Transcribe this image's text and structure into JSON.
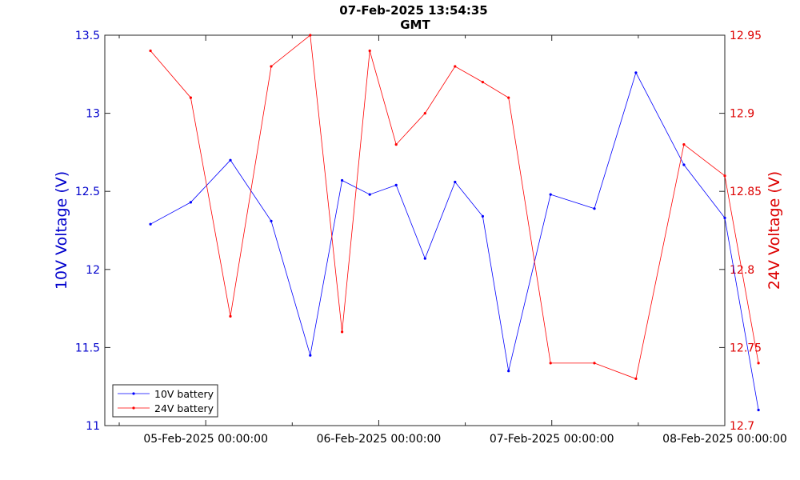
{
  "chart_data": {
    "type": "line",
    "title": "07-Feb-2025 13:54:35",
    "subtitle": "GMT",
    "ylabel": "10V Voltage (V)",
    "y2label": "24V Voltage (V)",
    "xlim": [
      "2025-02-04T10:00:00",
      "2025-02-08T00:00:00"
    ],
    "ylim": [
      11,
      13.5
    ],
    "y2lim": [
      12.7,
      12.95
    ],
    "x_ticks": [
      "05-Feb-2025 00:00:00",
      "06-Feb-2025 00:00:00",
      "07-Feb-2025 00:00:00",
      "08-Feb-2025 00:00:00"
    ],
    "y_ticks": [
      "11",
      "11.5",
      "12",
      "12.5",
      "13",
      "13.5"
    ],
    "y2_ticks": [
      "12.7",
      "12.75",
      "12.8",
      "12.85",
      "12.9",
      "12.95"
    ],
    "grid": false,
    "legend_position": "bottom-left",
    "series": [
      {
        "name": "10V battery",
        "axis": "left",
        "color": "#0000ff",
        "x": [
          "2025-02-04T16:20",
          "2025-02-04T21:55",
          "2025-02-05T03:25",
          "2025-02-05T09:05",
          "2025-02-05T14:30",
          "2025-02-05T18:55",
          "2025-02-05T22:45",
          "2025-02-06T02:25",
          "2025-02-06T06:25",
          "2025-02-06T10:35",
          "2025-02-06T14:25",
          "2025-02-06T18:00",
          "2025-02-06T23:50",
          "2025-02-07T05:55",
          "2025-02-07T11:40",
          "2025-02-07T18:20",
          "2025-02-08T00:00",
          "2025-02-08T04:40"
        ],
        "y": [
          12.29,
          12.43,
          12.7,
          12.31,
          11.45,
          12.57,
          12.48,
          12.54,
          12.07,
          12.56,
          12.34,
          11.35,
          12.48,
          12.39,
          13.26,
          12.67,
          12.33,
          11.1
        ]
      },
      {
        "name": "24V battery",
        "axis": "right",
        "color": "#ff0000",
        "x": [
          "2025-02-04T16:20",
          "2025-02-04T21:55",
          "2025-02-05T03:25",
          "2025-02-05T09:05",
          "2025-02-05T14:30",
          "2025-02-05T18:55",
          "2025-02-05T22:45",
          "2025-02-06T02:25",
          "2025-02-06T06:25",
          "2025-02-06T10:35",
          "2025-02-06T14:25",
          "2025-02-06T18:00",
          "2025-02-06T23:50",
          "2025-02-07T05:55",
          "2025-02-07T11:40",
          "2025-02-07T18:20",
          "2025-02-08T00:00",
          "2025-02-08T04:40"
        ],
        "y": [
          12.94,
          12.91,
          12.77,
          12.93,
          12.95,
          12.76,
          12.94,
          12.88,
          12.9,
          12.93,
          12.92,
          12.91,
          12.74,
          12.74,
          12.73,
          12.88,
          12.86,
          12.74
        ]
      }
    ]
  }
}
